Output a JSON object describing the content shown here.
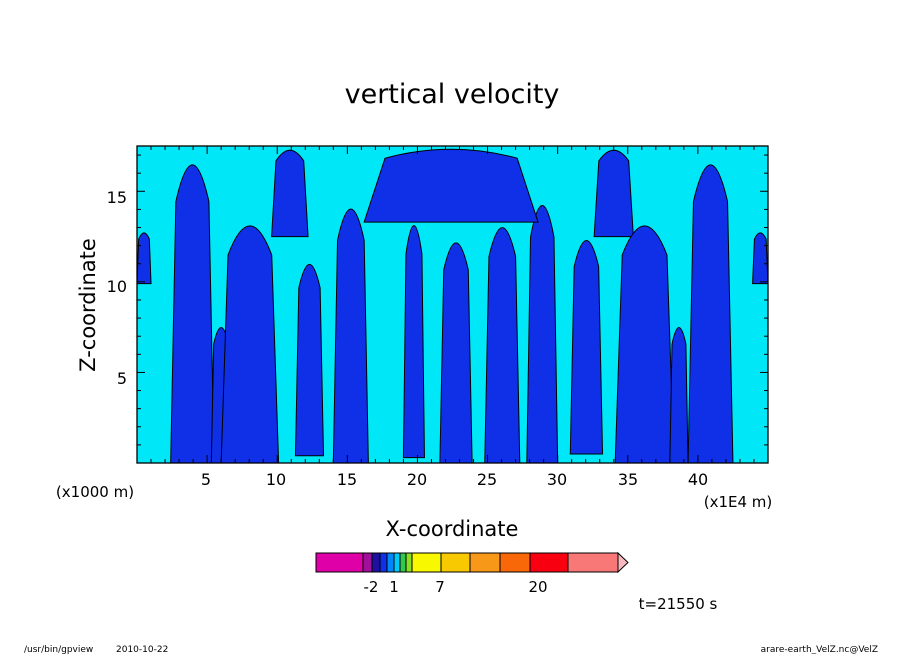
{
  "chart_data": {
    "type": "heatmap",
    "title": "vertical velocity",
    "xlabel": "X-coordinate",
    "ylabel": "Z-coordinate",
    "x_unit_left": "(x1000 m)",
    "x_unit_right": "(x1E4 m)",
    "xlim": [
      0,
      45
    ],
    "ylim": [
      0,
      17.5
    ],
    "x_ticks": [
      "5",
      "10",
      "15",
      "20",
      "25",
      "30",
      "35",
      "40"
    ],
    "y_ticks": [
      "5",
      "10",
      "15"
    ],
    "fill_colors": {
      "positive": "#00e8f8",
      "negative": "#1030e8",
      "contour_line": "#000000"
    },
    "colorbar": {
      "labels": [
        "-2",
        "1",
        "7",
        "20"
      ],
      "segments": [
        "#e000a8",
        "#a0109a",
        "#2010a0",
        "#1030e8",
        "#0088f8",
        "#00c8f8",
        "#30c850",
        "#88e020",
        "#f8f800",
        "#f8c800",
        "#f89818",
        "#f86808",
        "#f80010",
        "#f87878",
        "#f8b8c0"
      ]
    },
    "annotation_time": "t=21550 s"
  },
  "footer": {
    "program": "/usr/bin/gpview",
    "date": "2010-10-22",
    "source": "arare-earth_VelZ.nc@VelZ"
  }
}
